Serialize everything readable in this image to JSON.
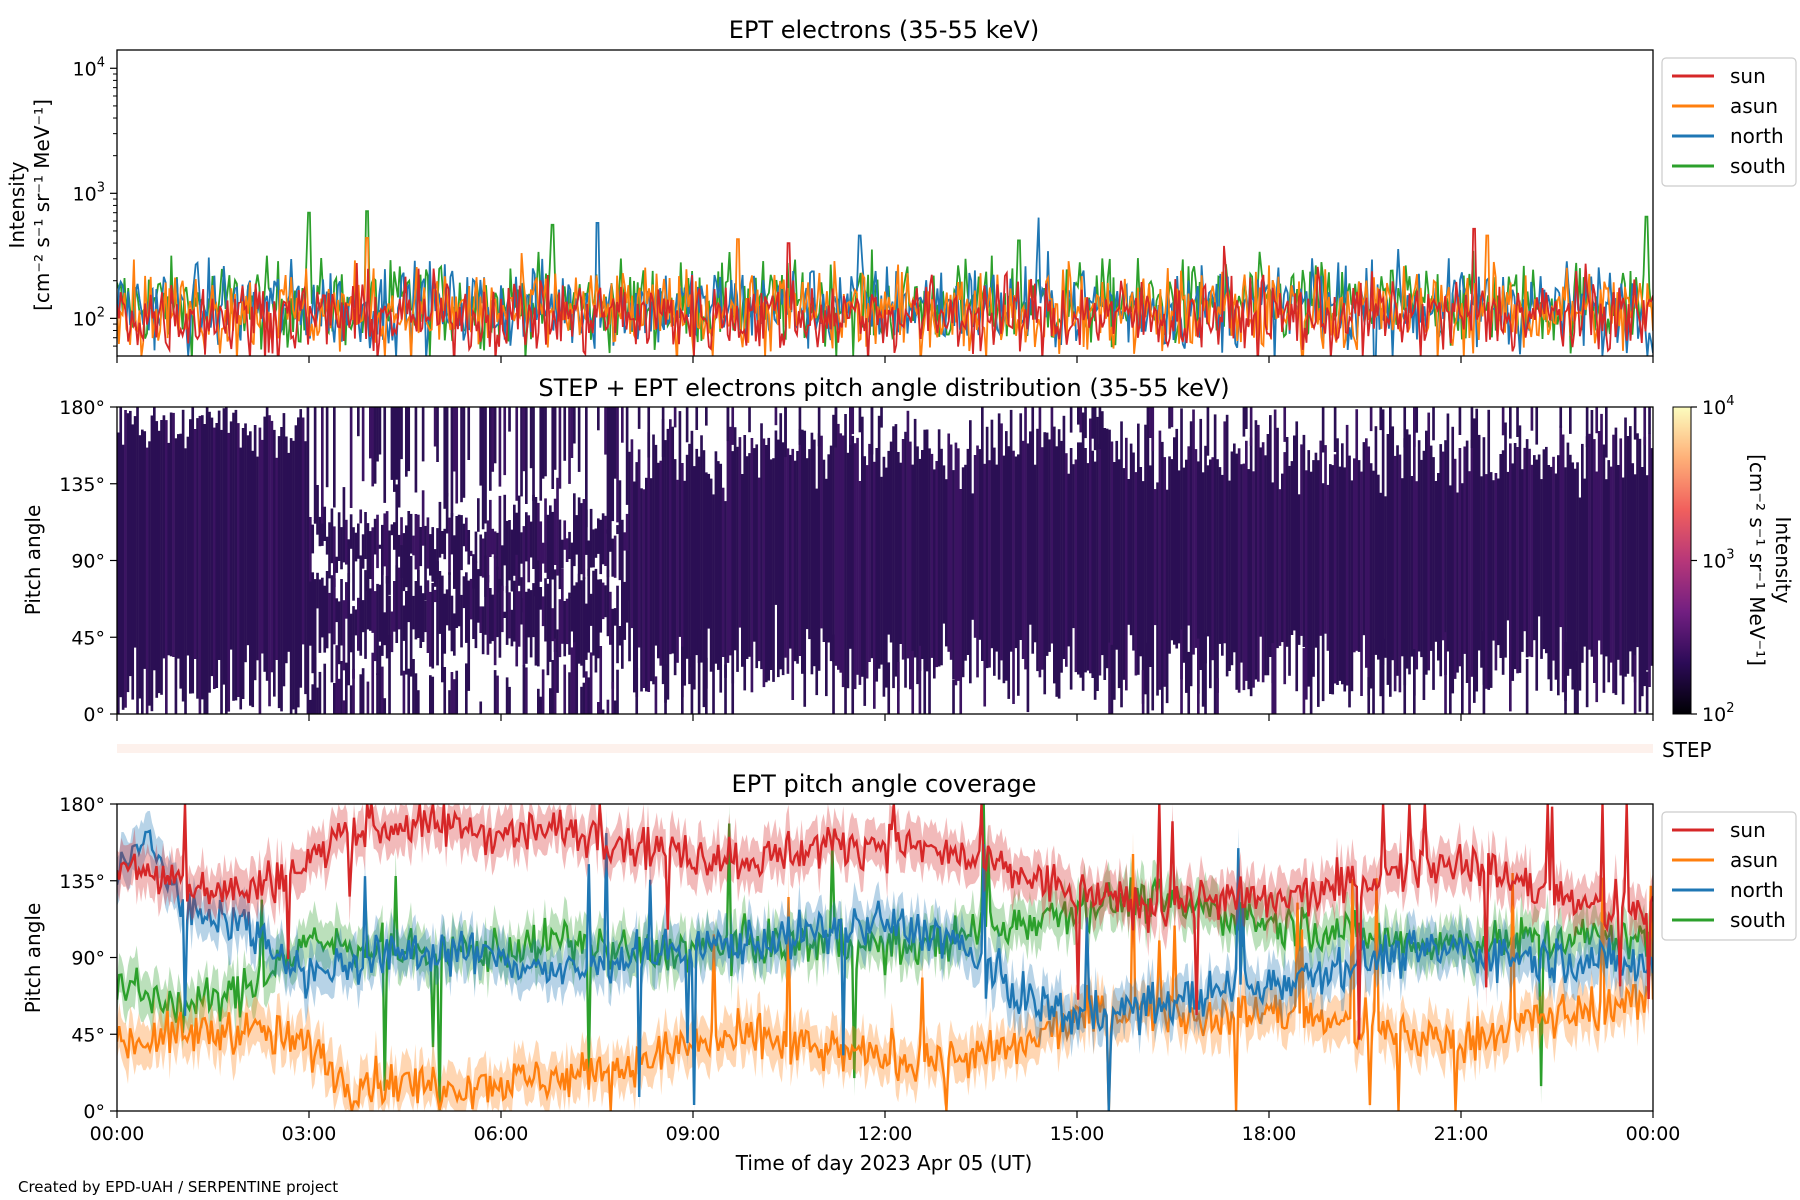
{
  "colors": {
    "sun": "#d62728",
    "asun": "#ff7f0e",
    "north": "#1f77b4",
    "south": "#2ca02c",
    "pad": "#2b0f54",
    "step_bar": "#fdf1ec"
  },
  "footer": "Created by EPD-UAH / SERPENTINE project",
  "chart_data": [
    {
      "type": "line",
      "title": "EPT electrons (35-55 keV)",
      "ylabel_line1": "Intensity",
      "ylabel_line2": "[cm⁻² s⁻¹ sr⁻¹ MeV⁻¹]",
      "yscale": "log",
      "ylim": [
        50,
        14000
      ],
      "y_ticks": [
        {
          "value": 100,
          "base": "10",
          "exp": "2"
        },
        {
          "value": 1000,
          "base": "10",
          "exp": "3"
        },
        {
          "value": 10000,
          "base": "10",
          "exp": "4"
        }
      ],
      "xlim": [
        0,
        24
      ],
      "legend_position": "outside-right",
      "series": [
        {
          "name": "south",
          "color_key": "south",
          "base": 130,
          "spread": 0.55,
          "peaks": [
            [
              3.0,
              700
            ],
            [
              3.9,
              720
            ],
            [
              6.8,
              560
            ],
            [
              14.1,
              420
            ],
            [
              23.9,
              650
            ]
          ]
        },
        {
          "name": "north",
          "color_key": "north",
          "base": 125,
          "spread": 0.55,
          "peaks": [
            [
              7.5,
              580
            ],
            [
              14.4,
              640
            ],
            [
              11.6,
              460
            ]
          ]
        },
        {
          "name": "asun",
          "color_key": "asun",
          "base": 115,
          "spread": 0.55,
          "peaks": [
            [
              3.9,
              440
            ],
            [
              9.7,
              430
            ],
            [
              21.4,
              460
            ]
          ]
        },
        {
          "name": "sun",
          "color_key": "sun",
          "base": 105,
          "spread": 0.5,
          "peaks": [
            [
              10.5,
              400
            ],
            [
              21.2,
              520
            ],
            [
              17.3,
              380
            ]
          ]
        }
      ]
    },
    {
      "type": "heatmap",
      "title": "STEP + EPT electrons pitch angle distribution (35-55 keV)",
      "ylabel": "Pitch angle",
      "ylim": [
        0,
        180
      ],
      "y_ticks": [
        "0°",
        "45°",
        "90°",
        "135°",
        "180°"
      ],
      "xlim": [
        0,
        24
      ],
      "colorbar": {
        "label_line1": "Intensity",
        "label_line2": "[cm⁻² s⁻¹ sr⁻¹ MeV⁻¹]",
        "scale": "log",
        "range": [
          100,
          10000
        ],
        "ticks": [
          {
            "base": "10",
            "exp": "2"
          },
          {
            "base": "10",
            "exp": "3"
          },
          {
            "base": "10",
            "exp": "4"
          }
        ],
        "colormap_stops": [
          "#000004",
          "#2c0b57",
          "#721f81",
          "#b73779",
          "#f1605d",
          "#feb078",
          "#fcfdbf"
        ]
      },
      "step_label": "STEP"
    },
    {
      "type": "line",
      "title": "EPT pitch angle coverage",
      "ylabel": "Pitch angle",
      "ylim": [
        0,
        180
      ],
      "y_ticks": [
        "0°",
        "45°",
        "90°",
        "135°",
        "180°"
      ],
      "xlim": [
        0,
        24
      ],
      "xlabel": "Time of day 2023 Apr 05 (UT)",
      "x_ticks": [
        "00:00",
        "03:00",
        "06:00",
        "09:00",
        "12:00",
        "15:00",
        "18:00",
        "21:00",
        "00:00"
      ],
      "legend_position": "outside-right",
      "series": [
        {
          "name": "sun",
          "color_key": "sun",
          "keypoints": [
            [
              0,
              145
            ],
            [
              1,
              135
            ],
            [
              2,
              128
            ],
            [
              3,
              145
            ],
            [
              3.5,
              165
            ],
            [
              5,
              168
            ],
            [
              6,
              163
            ],
            [
              7,
              165
            ],
            [
              8,
              158
            ],
            [
              9,
              150
            ],
            [
              10,
              148
            ],
            [
              11,
              155
            ],
            [
              12,
              158
            ],
            [
              13,
              150
            ],
            [
              14,
              140
            ],
            [
              15,
              128
            ],
            [
              16,
              120
            ],
            [
              17,
              125
            ],
            [
              18,
              122
            ],
            [
              19,
              130
            ],
            [
              20,
              140
            ],
            [
              21,
              148
            ],
            [
              22,
              132
            ],
            [
              23,
              120
            ],
            [
              24,
              115
            ]
          ]
        },
        {
          "name": "asun",
          "color_key": "asun",
          "keypoints": [
            [
              0,
              40
            ],
            [
              1,
              45
            ],
            [
              2,
              48
            ],
            [
              3,
              38
            ],
            [
              3.5,
              18
            ],
            [
              5,
              15
            ],
            [
              6,
              17
            ],
            [
              7,
              20
            ],
            [
              8,
              28
            ],
            [
              9,
              38
            ],
            [
              10,
              42
            ],
            [
              11,
              35
            ],
            [
              12,
              32
            ],
            [
              13,
              30
            ],
            [
              14,
              35
            ],
            [
              15,
              55
            ],
            [
              16,
              60
            ],
            [
              17,
              55
            ],
            [
              18,
              58
            ],
            [
              19,
              52
            ],
            [
              20,
              45
            ],
            [
              21,
              40
            ],
            [
              22,
              52
            ],
            [
              23,
              60
            ],
            [
              24,
              65
            ]
          ]
        },
        {
          "name": "north",
          "color_key": "north",
          "keypoints": [
            [
              0,
              140
            ],
            [
              0.5,
              160
            ],
            [
              1,
              120
            ],
            [
              2,
              110
            ],
            [
              3,
              80
            ],
            [
              4,
              90
            ],
            [
              5,
              95
            ],
            [
              6,
              90
            ],
            [
              7,
              80
            ],
            [
              8,
              90
            ],
            [
              9,
              95
            ],
            [
              10,
              100
            ],
            [
              11,
              105
            ],
            [
              12,
              110
            ],
            [
              13,
              102
            ],
            [
              14,
              70
            ],
            [
              15,
              55
            ],
            [
              16,
              60
            ],
            [
              17,
              68
            ],
            [
              18,
              75
            ],
            [
              19,
              85
            ],
            [
              20,
              92
            ],
            [
              21,
              95
            ],
            [
              22,
              90
            ],
            [
              23,
              88
            ],
            [
              24,
              85
            ]
          ]
        },
        {
          "name": "south",
          "color_key": "south",
          "keypoints": [
            [
              0,
              75
            ],
            [
              1,
              60
            ],
            [
              2,
              70
            ],
            [
              3,
              100
            ],
            [
              4,
              95
            ],
            [
              5,
              92
            ],
            [
              6,
              95
            ],
            [
              7,
              100
            ],
            [
              8,
              92
            ],
            [
              9,
              95
            ],
            [
              10,
              98
            ],
            [
              11,
              100
            ],
            [
              12,
              95
            ],
            [
              13,
              100
            ],
            [
              14,
              110
            ],
            [
              15,
              120
            ],
            [
              16,
              125
            ],
            [
              17,
              118
            ],
            [
              18,
              110
            ],
            [
              19,
              105
            ],
            [
              20,
              100
            ],
            [
              21,
              98
            ],
            [
              22,
              100
            ],
            [
              23,
              102
            ],
            [
              24,
              100
            ]
          ]
        }
      ]
    }
  ]
}
